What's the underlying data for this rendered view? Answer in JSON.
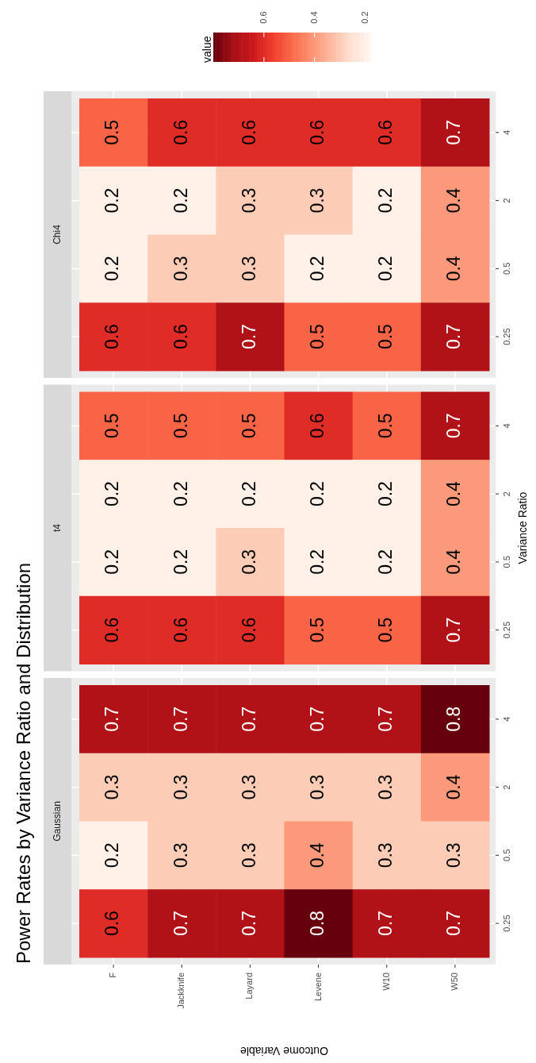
{
  "chart_data": [
    {
      "type": "heatmap",
      "subtitle": "Chi4",
      "clabel": "value",
      "categories": [
        null,
        null,
        null,
        null,
        null,
        null
      ],
      "y_categories": [
        "4",
        "2",
        "0.5",
        "0.25"
      ],
      "cells": [
        [
          0.5,
          0.6,
          0.6,
          0.6,
          0.6,
          0.7
        ],
        [
          0.2,
          0.2,
          0.3,
          0.3,
          0.2,
          0.4
        ],
        [
          0.2,
          0.3,
          0.3,
          0.2,
          0.2,
          0.4
        ],
        [
          0.6,
          0.6,
          0.7,
          0.5,
          0.5,
          0.7
        ]
      ],
      "clim": [
        0.18,
        0.8
      ],
      "cticks": [
        0.2,
        0.4,
        0.6
      ],
      "data_labels": true,
      "grid": true,
      "tick_labels": "y"
    },
    {
      "type": "heatmap",
      "subtitle": "t4",
      "ylabel": "Variance Ratio",
      "categories": [
        null,
        null,
        null,
        null,
        null,
        null
      ],
      "y_categories": [
        "4",
        "2",
        "0.5",
        "0.25"
      ],
      "cells": [
        [
          0.5,
          0.5,
          0.5,
          0.6,
          0.5,
          0.7
        ],
        [
          0.2,
          0.2,
          0.2,
          0.2,
          0.2,
          0.4
        ],
        [
          0.2,
          0.2,
          0.3,
          0.2,
          0.2,
          0.4
        ],
        [
          0.6,
          0.6,
          0.6,
          0.5,
          0.5,
          0.7
        ]
      ],
      "data_labels": true,
      "grid": true,
      "tick_labels": "y"
    },
    {
      "type": "heatmap",
      "title": "Power Rates by Variance Ratio and Distribution",
      "subtitle": "Gaussian",
      "xlabel": "Outcome Variable",
      "categories": [
        "F",
        "Jackknife",
        "Layard",
        "Levene",
        "W10",
        "W50"
      ],
      "y_categories": [
        "4",
        "2",
        "0.5",
        "0.25"
      ],
      "cells": [
        [
          0.7,
          0.7,
          0.7,
          0.7,
          0.7,
          0.8
        ],
        [
          0.3,
          0.3,
          0.3,
          0.3,
          0.3,
          0.4
        ],
        [
          0.2,
          0.3,
          0.3,
          0.4,
          0.3,
          0.3
        ],
        [
          0.6,
          0.7,
          0.7,
          0.8,
          0.7,
          0.7
        ]
      ],
      "data_labels": true,
      "grid": true
    }
  ]
}
